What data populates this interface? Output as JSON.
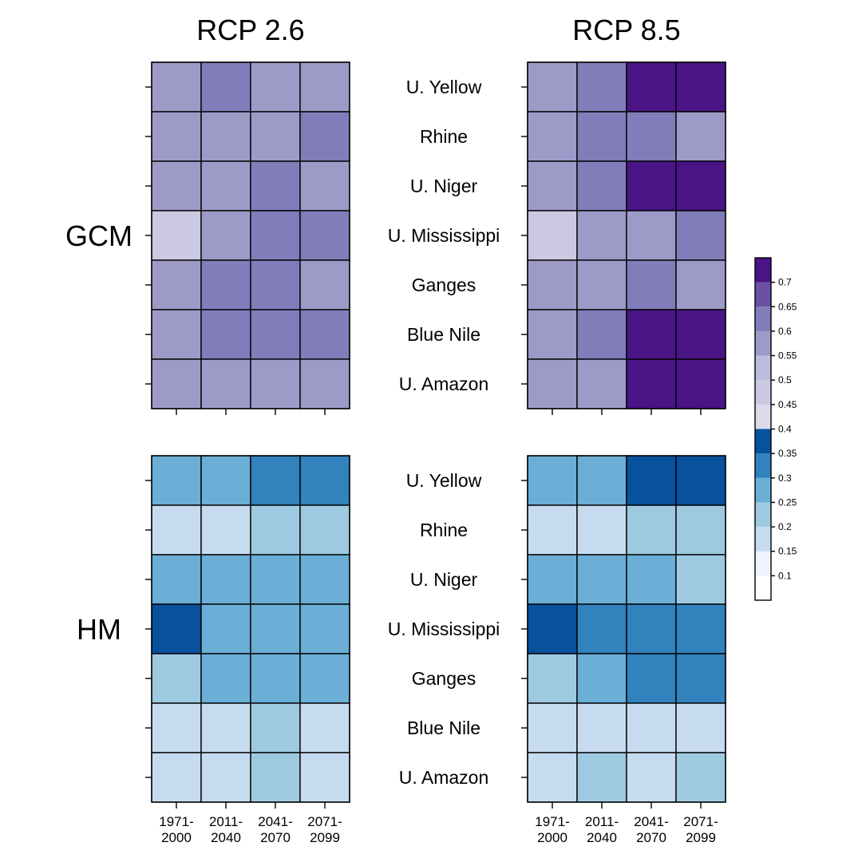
{
  "chart_data": {
    "type": "heatmap",
    "column_titles": [
      "RCP 2.6",
      "RCP 8.5"
    ],
    "row_titles": [
      "GCM",
      "HM"
    ],
    "basins": [
      "U. Yellow",
      "Rhine",
      "U. Niger",
      "U. Mississippi",
      "Ganges",
      "Blue Nile",
      "U. Amazon"
    ],
    "periods": [
      [
        "1971-",
        "2000"
      ],
      [
        "2011-",
        "2040"
      ],
      [
        "2041-",
        "2070"
      ],
      [
        "2071-",
        "2099"
      ]
    ],
    "panels": [
      {
        "row": "GCM",
        "scenario": "RCP 2.6",
        "values": [
          [
            0.57,
            0.63,
            0.57,
            0.57
          ],
          [
            0.57,
            0.58,
            0.58,
            0.63
          ],
          [
            0.57,
            0.58,
            0.63,
            0.57
          ],
          [
            0.48,
            0.58,
            0.63,
            0.63
          ],
          [
            0.57,
            0.63,
            0.63,
            0.57
          ],
          [
            0.57,
            0.63,
            0.63,
            0.63
          ],
          [
            0.57,
            0.58,
            0.57,
            0.57
          ]
        ]
      },
      {
        "row": "GCM",
        "scenario": "RCP 8.5",
        "values": [
          [
            0.57,
            0.63,
            0.72,
            0.72
          ],
          [
            0.57,
            0.63,
            0.63,
            0.57
          ],
          [
            0.57,
            0.63,
            0.72,
            0.72
          ],
          [
            0.48,
            0.57,
            0.57,
            0.63
          ],
          [
            0.57,
            0.57,
            0.63,
            0.57
          ],
          [
            0.57,
            0.63,
            0.72,
            0.72
          ],
          [
            0.57,
            0.57,
            0.72,
            0.72
          ]
        ]
      },
      {
        "row": "HM",
        "scenario": "RCP 2.6",
        "values": [
          [
            0.27,
            0.27,
            0.32,
            0.32
          ],
          [
            0.17,
            0.17,
            0.22,
            0.22
          ],
          [
            0.27,
            0.27,
            0.27,
            0.27
          ],
          [
            0.37,
            0.27,
            0.27,
            0.27
          ],
          [
            0.22,
            0.27,
            0.27,
            0.27
          ],
          [
            0.17,
            0.17,
            0.22,
            0.17
          ],
          [
            0.17,
            0.17,
            0.22,
            0.17
          ]
        ]
      },
      {
        "row": "HM",
        "scenario": "RCP 8.5",
        "values": [
          [
            0.27,
            0.27,
            0.37,
            0.37
          ],
          [
            0.17,
            0.17,
            0.22,
            0.22
          ],
          [
            0.27,
            0.27,
            0.27,
            0.22
          ],
          [
            0.37,
            0.32,
            0.32,
            0.32
          ],
          [
            0.22,
            0.27,
            0.32,
            0.32
          ],
          [
            0.17,
            0.17,
            0.17,
            0.17
          ],
          [
            0.17,
            0.22,
            0.17,
            0.22
          ]
        ]
      }
    ],
    "legend": {
      "placement": "right",
      "bins": [
        {
          "low": 0.05,
          "high": 0.1,
          "color": "#ffffff"
        },
        {
          "low": 0.1,
          "high": 0.15,
          "color": "#eff3ff"
        },
        {
          "low": 0.15,
          "high": 0.2,
          "color": "#c6dbef"
        },
        {
          "low": 0.2,
          "high": 0.25,
          "color": "#9ecae1"
        },
        {
          "low": 0.25,
          "high": 0.3,
          "color": "#6baed6"
        },
        {
          "low": 0.3,
          "high": 0.35,
          "color": "#3182bd"
        },
        {
          "low": 0.35,
          "high": 0.4,
          "color": "#08519c"
        },
        {
          "low": 0.4,
          "high": 0.45,
          "color": "#dadaeb"
        },
        {
          "low": 0.45,
          "high": 0.5,
          "color": "#cbc9e2"
        },
        {
          "low": 0.5,
          "high": 0.55,
          "color": "#bcbddc"
        },
        {
          "low": 0.55,
          "high": 0.6,
          "color": "#9e9ac8"
        },
        {
          "low": 0.6,
          "high": 0.65,
          "color": "#807dba"
        },
        {
          "low": 0.65,
          "high": 0.7,
          "color": "#6a51a3"
        },
        {
          "low": 0.7,
          "high": 0.75,
          "color": "#4a1486"
        }
      ],
      "tick_labels": [
        "0.1",
        "0.15",
        "0.2",
        "0.25",
        "0.3",
        "0.35",
        "0.4",
        "0.45",
        "0.5",
        "0.55",
        "0.6",
        "0.65",
        "0.7"
      ]
    }
  }
}
